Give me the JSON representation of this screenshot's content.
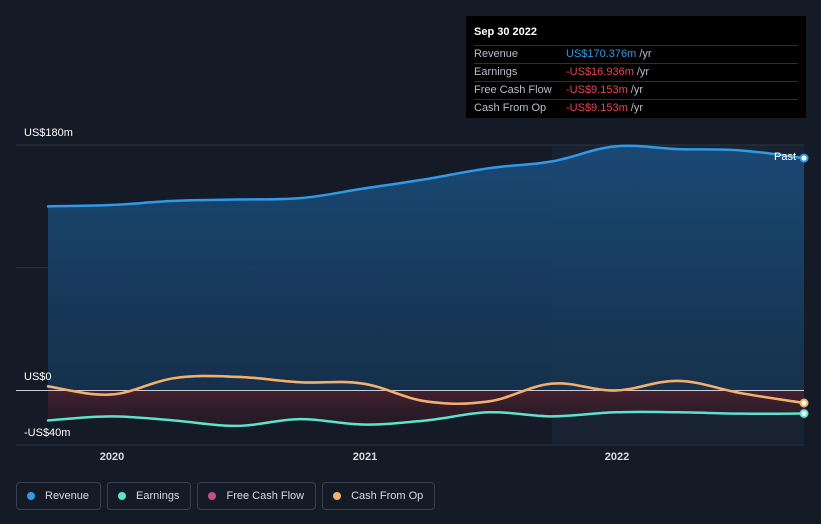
{
  "tooltip": {
    "date": "Sep 30 2022",
    "rows": [
      {
        "label": "Revenue",
        "value": "US$170.376m",
        "unit": "/yr",
        "color": "#2f9ae8"
      },
      {
        "label": "Earnings",
        "value": "-US$16.936m",
        "unit": "/yr",
        "color": "#e9434a"
      },
      {
        "label": "Free Cash Flow",
        "value": "-US$9.153m",
        "unit": "/yr",
        "color": "#e9434a"
      },
      {
        "label": "Cash From Op",
        "value": "-US$9.153m",
        "unit": "/yr",
        "color": "#e9434a"
      }
    ]
  },
  "past_label": "Past",
  "legend": [
    {
      "label": "Revenue",
      "color": "#2f9ae8"
    },
    {
      "label": "Earnings",
      "color": "#5ee1cd"
    },
    {
      "label": "Free Cash Flow",
      "color": "#c54b8c"
    },
    {
      "label": "Cash From Op",
      "color": "#f0b26b"
    }
  ],
  "chart_data": {
    "type": "line",
    "y_tick_labels": {
      "top": "US$180m",
      "zero": "US$0",
      "bottom": "-US$40m"
    },
    "ylim": [
      -40,
      180
    ],
    "xlim": [
      2019.75,
      2022.75
    ],
    "x_ticks": [
      {
        "label": "2020",
        "value": 2020.0
      },
      {
        "label": "2021",
        "value": 2021.0
      },
      {
        "label": "2022",
        "value": 2022.0
      }
    ],
    "highlight_from": 2021.75,
    "x": [
      2019.75,
      2020.0,
      2020.25,
      2020.5,
      2020.75,
      2021.0,
      2021.25,
      2021.5,
      2021.75,
      2022.0,
      2022.25,
      2022.5,
      2022.75
    ],
    "series": [
      {
        "name": "Revenue",
        "color": "#2f9ae8",
        "values": [
          135,
          136,
          139,
          140,
          141,
          148,
          155,
          163,
          168,
          179,
          177,
          176,
          170.4
        ]
      },
      {
        "name": "Earnings",
        "color": "#5ee1cd",
        "values": [
          -22,
          -19,
          -22,
          -26,
          -21,
          -25,
          -22,
          -16,
          -19,
          -16,
          -16,
          -17,
          -16.9
        ]
      },
      {
        "name": "Free Cash Flow",
        "color": "#c54b8c",
        "values": [
          3,
          -3,
          9,
          10,
          6,
          5,
          -8,
          -8,
          5,
          0,
          7,
          -2,
          -9.2
        ]
      },
      {
        "name": "Cash From Op",
        "color": "#f0b26b",
        "values": [
          3,
          -3,
          9,
          10,
          6,
          5,
          -8,
          -8,
          5,
          0,
          7,
          -2,
          -9.2
        ]
      }
    ]
  }
}
